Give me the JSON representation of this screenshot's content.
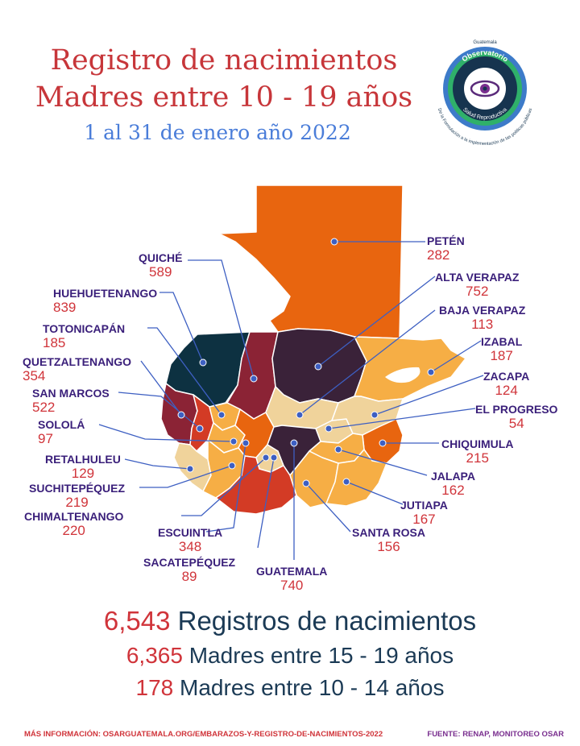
{
  "title_line1": "Registro de nacimientos",
  "title_line2": "Madres entre 10 - 19 años",
  "subtitle": "1 al 31 de enero año 2022",
  "logo": {
    "top_text": "Guatemala",
    "ring_text": "Observatorio",
    "ring_text2": "Salud Reproductiva",
    "arc_text": "De la Formulación a la implementación de las políticas públicas"
  },
  "colors": {
    "title": "#c7363a",
    "subtitle": "#4a7dd9",
    "label_name": "#3a1f7a",
    "label_value": "#d0343a",
    "summary_text": "#1b3a55",
    "map_orange": "#e8650f",
    "map_navy": "#0d3141",
    "map_maroon": "#8b2335",
    "map_darkpurple": "#3a2239",
    "map_lightorange": "#f6ae45",
    "map_beige": "#f0d39b",
    "map_red": "#d33b25",
    "connector": "#3d5fc2"
  },
  "departments": [
    {
      "name": "PETÉN",
      "value": "282"
    },
    {
      "name": "ALTA VERAPAZ",
      "value": "752"
    },
    {
      "name": "BAJA VERAPAZ",
      "value": "113"
    },
    {
      "name": "IZABAL",
      "value": "187"
    },
    {
      "name": "ZACAPA",
      "value": "124"
    },
    {
      "name": "EL PROGRESO",
      "value": "54"
    },
    {
      "name": "CHIQUIMULA",
      "value": "215"
    },
    {
      "name": "JALAPA",
      "value": "162"
    },
    {
      "name": "JUTIAPA",
      "value": "167"
    },
    {
      "name": "SANTA ROSA",
      "value": "156"
    },
    {
      "name": "GUATEMALA",
      "value": "740"
    },
    {
      "name": "SACATEPÉQUEZ",
      "value": "89"
    },
    {
      "name": "ESCUINTLA",
      "value": "348"
    },
    {
      "name": "CHIMALTENANGO",
      "value": "220"
    },
    {
      "name": "SUCHITEPÉQUEZ",
      "value": "219"
    },
    {
      "name": "RETALHULEU",
      "value": "129"
    },
    {
      "name": "SOLOLÁ",
      "value": "97"
    },
    {
      "name": "SAN MARCOS",
      "value": "522"
    },
    {
      "name": "QUETZALTENANGO",
      "value": "354"
    },
    {
      "name": "TOTONICAPÁN",
      "value": "185"
    },
    {
      "name": "HUEHUETENANGO",
      "value": "839"
    },
    {
      "name": "QUICHÉ",
      "value": "589"
    }
  ],
  "summary": [
    {
      "number": "6,543",
      "text": "Registros de nacimientos"
    },
    {
      "number": "6,365",
      "text": "Madres entre 15 - 19 años"
    },
    {
      "number": "178",
      "text": "Madres entre 10 - 14 años"
    }
  ],
  "footer_left": "MÁS INFORMACIÓN: OSARGUATEMALA.ORG/EMBARAZOS-Y-REGISTRO-DE-NACIMIENTOS-2022",
  "footer_right": "FUENTE: RENAP, MONITOREO OSAR"
}
